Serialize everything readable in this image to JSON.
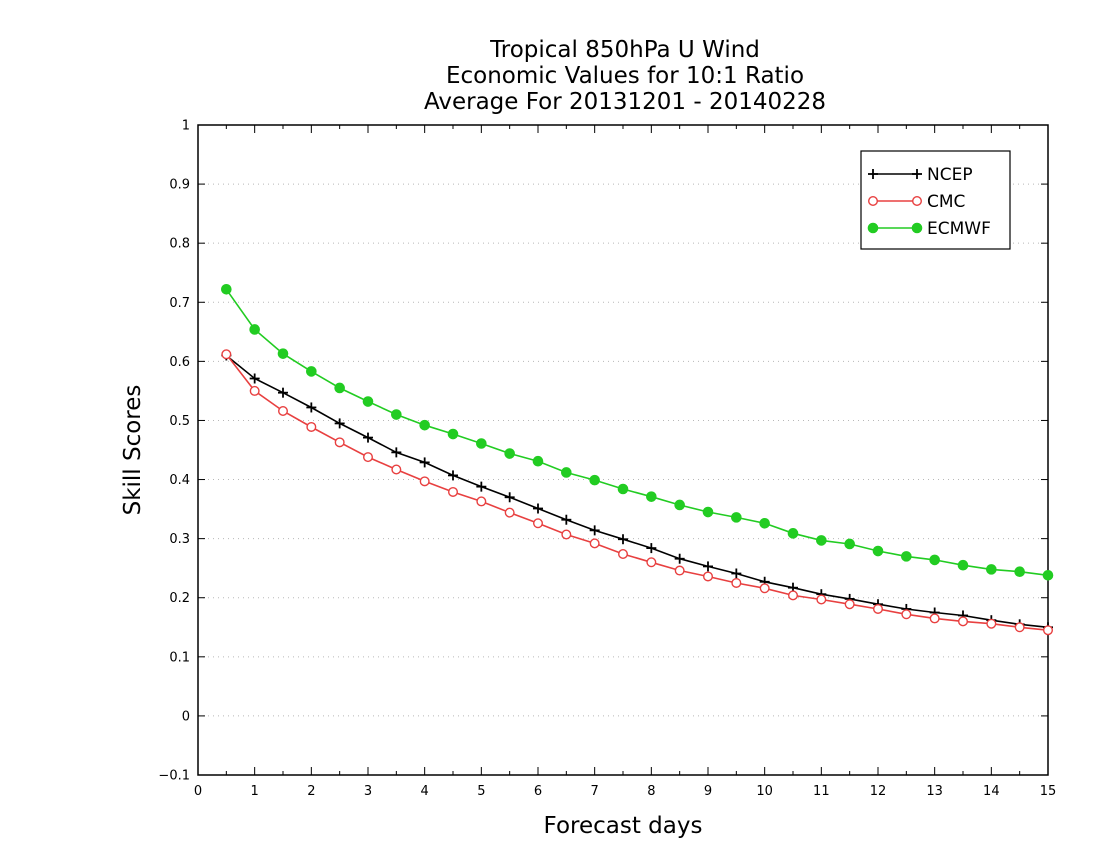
{
  "chart_data": {
    "type": "line",
    "title_lines": [
      "Tropical 850hPa U Wind",
      "Economic Values for 10:1 Ratio",
      "Average For 20131201 - 20140228"
    ],
    "xlabel": "Forecast days",
    "ylabel": "Skill Scores",
    "xlim": [
      0,
      15
    ],
    "ylim": [
      -0.1,
      1
    ],
    "x_ticks": [
      0,
      1,
      2,
      3,
      4,
      5,
      6,
      7,
      8,
      9,
      10,
      11,
      12,
      13,
      14,
      15
    ],
    "x_tick_labels": [
      "0",
      "1",
      "2",
      "3",
      "4",
      "5",
      "6",
      "7",
      "8",
      "9",
      "10",
      "11",
      "12",
      "13",
      "14",
      "15"
    ],
    "y_ticks": [
      -0.1,
      0,
      0.1,
      0.2,
      0.3,
      0.4,
      0.5,
      0.6,
      0.7,
      0.8,
      0.9,
      1
    ],
    "y_tick_labels": [
      "−0.1",
      "0",
      "0.1",
      "0.2",
      "0.3",
      "0.4",
      "0.5",
      "0.6",
      "0.7",
      "0.8",
      "0.9",
      "1"
    ],
    "grid": "horizontal dotted",
    "legend_position": "top-right",
    "x": [
      0.5,
      1,
      1.5,
      2,
      2.5,
      3,
      3.5,
      4,
      4.5,
      5,
      5.5,
      6,
      6.5,
      7,
      7.5,
      8,
      8.5,
      9,
      9.5,
      10,
      10.5,
      11,
      11.5,
      12,
      12.5,
      13,
      13.5,
      14,
      14.5,
      15
    ],
    "series": [
      {
        "name": "NCEP",
        "color": "#000000",
        "marker": "plus",
        "values": [
          0.61,
          0.571,
          0.547,
          0.522,
          0.495,
          0.471,
          0.446,
          0.429,
          0.407,
          0.388,
          0.37,
          0.351,
          0.332,
          0.314,
          0.299,
          0.284,
          0.266,
          0.253,
          0.241,
          0.227,
          0.217,
          0.206,
          0.198,
          0.189,
          0.181,
          0.175,
          0.17,
          0.162,
          0.155,
          0.15
        ]
      },
      {
        "name": "CMC",
        "color": "#e84040",
        "marker": "open-circle",
        "values": [
          0.612,
          0.55,
          0.516,
          0.489,
          0.463,
          0.438,
          0.417,
          0.397,
          0.379,
          0.363,
          0.344,
          0.326,
          0.307,
          0.292,
          0.274,
          0.26,
          0.246,
          0.236,
          0.225,
          0.216,
          0.204,
          0.197,
          0.189,
          0.181,
          0.172,
          0.165,
          0.16,
          0.156,
          0.15,
          0.145
        ]
      },
      {
        "name": "ECMWF",
        "color": "#22cc22",
        "marker": "filled-circle",
        "values": [
          0.722,
          0.654,
          0.613,
          0.583,
          0.555,
          0.532,
          0.51,
          0.492,
          0.477,
          0.461,
          0.444,
          0.431,
          0.412,
          0.399,
          0.384,
          0.371,
          0.357,
          0.345,
          0.336,
          0.326,
          0.309,
          0.297,
          0.291,
          0.279,
          0.27,
          0.264,
          0.255,
          0.248,
          0.244,
          0.238
        ]
      }
    ]
  }
}
